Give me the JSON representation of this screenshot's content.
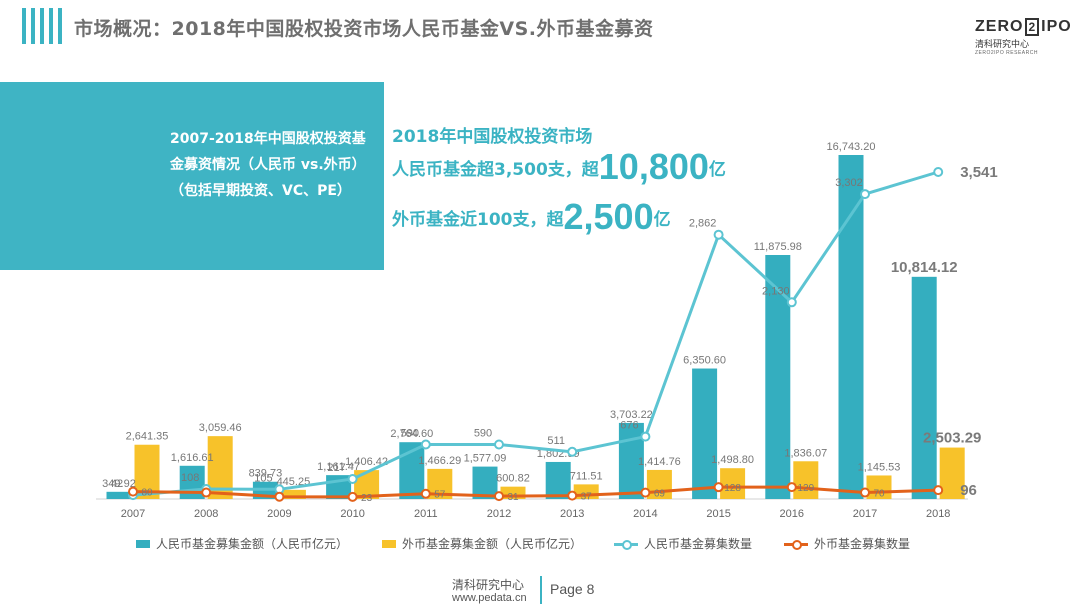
{
  "header": {
    "title": "市场概况：2018年中国股权投资市场人民币基金VS.外币基金募资",
    "logo_top_left": "ZERO",
    "logo_top_mid": "2",
    "logo_top_right": "IPO",
    "logo_sub": "清科研究中心",
    "logo_tiny": "ZERO2IPO RESEARCH"
  },
  "banner": {
    "line1": "2007-2018年中国股权投资基",
    "line2": "金募资情况（人民币  vs.外币）",
    "line3": "（包括早期投资、VC、PE）"
  },
  "highlights": {
    "line1": "2018年中国股权投资市场",
    "rmb_prefix": "人民币基金超3,500支，超",
    "rmb_big": "10,800",
    "rmb_unit": "亿",
    "fx_prefix": "外币基金近100支，超",
    "fx_big": "2,500",
    "fx_unit": "亿"
  },
  "chart_data": {
    "type": "bar",
    "categories": [
      "2007",
      "2008",
      "2009",
      "2010",
      "2011",
      "2012",
      "2013",
      "2014",
      "2015",
      "2016",
      "2017",
      "2018"
    ],
    "series": [
      {
        "name": "人民币基金募集金额（人民币亿元）",
        "kind": "bar",
        "color": "#34aebf",
        "values": [
          349.92,
          1616.61,
          839.73,
          1161.47,
          2764.6,
          1577.09,
          1802.99,
          3703.22,
          6350.6,
          11875.98,
          16743.2,
          10814.12
        ],
        "labels": [
          "349.92",
          "1,616.61",
          "839.73",
          "1,161.47",
          "2,764.60",
          "1,577.09",
          "1,802.99",
          "3,703.22",
          "6,350.60",
          "11,875.98",
          "16,743.20",
          "10,814.12"
        ]
      },
      {
        "name": "外币基金募集金额（人民币亿元）",
        "kind": "bar",
        "color": "#f7c22a",
        "values": [
          2641.35,
          3059.46,
          445.25,
          1406.42,
          1466.29,
          600.82,
          711.51,
          1414.76,
          1498.8,
          1836.07,
          1145.53,
          2503.29
        ],
        "labels": [
          "2,641.35",
          "3,059.46",
          "445.25",
          "1,406.42",
          "1,466.29",
          "600.82",
          "711.51",
          "1,414.76",
          "1,498.80",
          "1,836.07",
          "1,145.53",
          "2,503.29"
        ]
      },
      {
        "name": "人民币基金募集数量",
        "kind": "line",
        "color": "#5cc4d2",
        "values": [
          42,
          108,
          105,
          217,
          590,
          590,
          511,
          676,
          2862,
          2130,
          3302,
          3541
        ],
        "labels": [
          "42",
          "108",
          "105",
          "217",
          "590",
          "590",
          "511",
          "676",
          "2,862",
          "2,130",
          "3,302",
          "3,541"
        ]
      },
      {
        "name": "外币基金募集数量",
        "kind": "line",
        "color": "#e2621b",
        "values": [
          80,
          70,
          25,
          23,
          57,
          31,
          37,
          69,
          128,
          129,
          70,
          96
        ],
        "labels": [
          "80",
          "",
          "",
          "23",
          "57",
          "31",
          "37",
          "69",
          "128",
          "129",
          "70",
          "96"
        ]
      }
    ]
  },
  "footer": {
    "org": "清科研究中心",
    "url": "www.pedata.cn",
    "page": "Page  8"
  }
}
